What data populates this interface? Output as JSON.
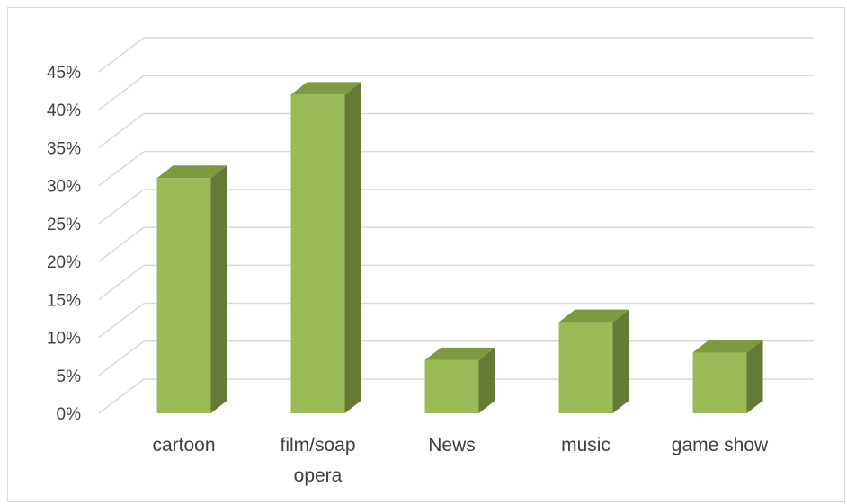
{
  "chart_data": {
    "type": "bar",
    "style": "3d-column",
    "categories": [
      "cartoon",
      "film/soap opera",
      "News",
      "music",
      "game show"
    ],
    "category_label_lines": [
      [
        "cartoon"
      ],
      [
        "film/soap",
        "opera"
      ],
      [
        "News"
      ],
      [
        "music"
      ],
      [
        "game show"
      ]
    ],
    "values": [
      31,
      42,
      7,
      12,
      8
    ],
    "value_format": "percent",
    "title": "",
    "xlabel": "",
    "ylabel": "",
    "ylim": [
      0,
      45
    ],
    "ytick_step": 5,
    "grid": true,
    "legend": "none",
    "colors": {
      "bar_front": "#9BBB59",
      "bar_side": "#657A35",
      "bar_top": "#7D9A41",
      "gridline": "#d9d9d9",
      "axis_text": "#404040",
      "frame": "#d9d9d9"
    }
  }
}
